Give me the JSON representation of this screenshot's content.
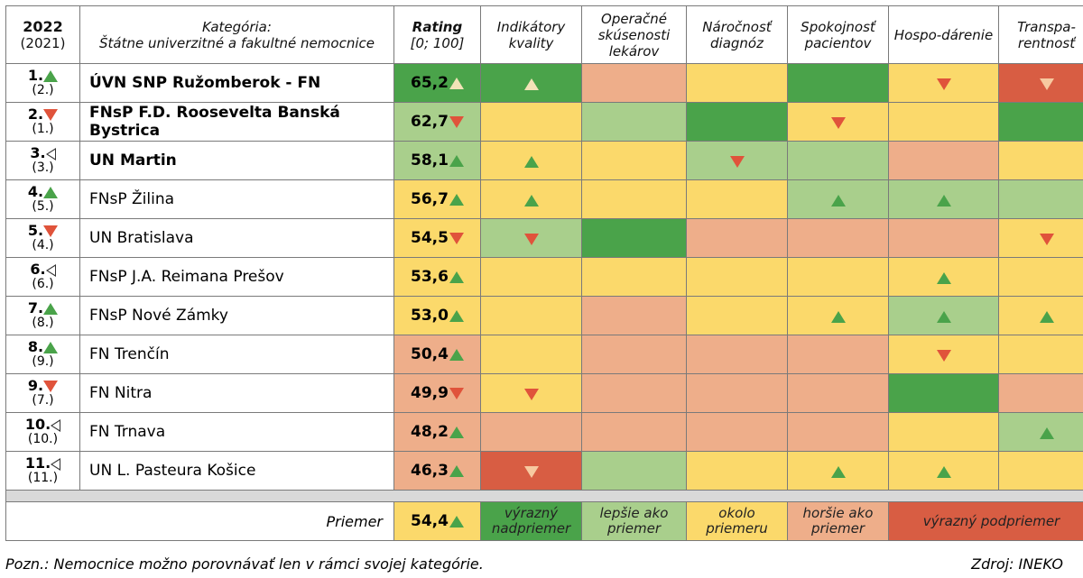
{
  "header": {
    "year_current": "2022",
    "year_previous": "(2021)",
    "category_title": "Kategória:",
    "category_sub": "Štátne univerzitné a fakultné nemocnice",
    "rating_title": "Rating",
    "rating_range": "[0; 100]",
    "columns": [
      "Indikátory kvality",
      "Operačné skúsenosti lekárov",
      "Náročnosť diagnóz",
      "Spokojnosť pacientov",
      "Hospo-dárenie",
      "Transpa-rentnosť"
    ]
  },
  "colors": {
    "dark_green": "#4aa34a",
    "light_green": "#a9cf8c",
    "yellow": "#fbd96b",
    "orange": "#eeae8a",
    "red": "#d85d43",
    "arrow_up": "#4aa34a",
    "arrow_down": "#e0533b"
  },
  "rows": [
    {
      "rank": "1.",
      "prev": "(2.)",
      "trend": "up",
      "name": "ÚVN SNP Ružomberok - FN",
      "bold": true,
      "score": "65,2",
      "score_trend": "up-light",
      "score_color": "dg",
      "cells": [
        {
          "c": "dg",
          "a": "up-light"
        },
        {
          "c": "o",
          "a": ""
        },
        {
          "c": "y",
          "a": ""
        },
        {
          "c": "dg",
          "a": ""
        },
        {
          "c": "y",
          "a": "down"
        },
        {
          "c": "r",
          "a": "down-light"
        }
      ]
    },
    {
      "rank": "2.",
      "prev": "(1.)",
      "trend": "down",
      "name": "FNsP F.D. Roosevelta Banská Bystrica",
      "bold": true,
      "score": "62,7",
      "score_trend": "down",
      "score_color": "lg",
      "cells": [
        {
          "c": "y",
          "a": ""
        },
        {
          "c": "lg",
          "a": ""
        },
        {
          "c": "dg",
          "a": ""
        },
        {
          "c": "y",
          "a": "down"
        },
        {
          "c": "y",
          "a": ""
        },
        {
          "c": "dg",
          "a": ""
        }
      ]
    },
    {
      "rank": "3.",
      "prev": "(3.)",
      "trend": "same",
      "name": "UN Martin",
      "bold": true,
      "score": "58,1",
      "score_trend": "up",
      "score_color": "lg",
      "cells": [
        {
          "c": "y",
          "a": "up"
        },
        {
          "c": "y",
          "a": ""
        },
        {
          "c": "lg",
          "a": "down"
        },
        {
          "c": "lg",
          "a": ""
        },
        {
          "c": "o",
          "a": ""
        },
        {
          "c": "y",
          "a": ""
        }
      ]
    },
    {
      "rank": "4.",
      "prev": "(5.)",
      "trend": "up",
      "name": "FNsP Žilina",
      "bold": false,
      "score": "56,7",
      "score_trend": "up",
      "score_color": "y",
      "cells": [
        {
          "c": "y",
          "a": "up"
        },
        {
          "c": "y",
          "a": ""
        },
        {
          "c": "y",
          "a": ""
        },
        {
          "c": "lg",
          "a": "up"
        },
        {
          "c": "lg",
          "a": "up"
        },
        {
          "c": "lg",
          "a": ""
        }
      ]
    },
    {
      "rank": "5.",
      "prev": "(4.)",
      "trend": "down",
      "name": "UN Bratislava",
      "bold": false,
      "score": "54,5",
      "score_trend": "down",
      "score_color": "y",
      "cells": [
        {
          "c": "lg",
          "a": "down"
        },
        {
          "c": "dg",
          "a": ""
        },
        {
          "c": "o",
          "a": ""
        },
        {
          "c": "o",
          "a": ""
        },
        {
          "c": "o",
          "a": ""
        },
        {
          "c": "y",
          "a": "down"
        }
      ]
    },
    {
      "rank": "6.",
      "prev": "(6.)",
      "trend": "same",
      "name": "FNsP J.A. Reimana Prešov",
      "bold": false,
      "score": "53,6",
      "score_trend": "up",
      "score_color": "y",
      "cells": [
        {
          "c": "y",
          "a": ""
        },
        {
          "c": "y",
          "a": ""
        },
        {
          "c": "y",
          "a": ""
        },
        {
          "c": "y",
          "a": ""
        },
        {
          "c": "y",
          "a": "up"
        },
        {
          "c": "y",
          "a": ""
        }
      ]
    },
    {
      "rank": "7.",
      "prev": "(8.)",
      "trend": "up",
      "name": "FNsP Nové Zámky",
      "bold": false,
      "score": "53,0",
      "score_trend": "up",
      "score_color": "y",
      "cells": [
        {
          "c": "y",
          "a": ""
        },
        {
          "c": "o",
          "a": ""
        },
        {
          "c": "y",
          "a": ""
        },
        {
          "c": "y",
          "a": "up"
        },
        {
          "c": "lg",
          "a": "up"
        },
        {
          "c": "y",
          "a": "up"
        }
      ]
    },
    {
      "rank": "8.",
      "prev": "(9.)",
      "trend": "up",
      "name": "FN Trenčín",
      "bold": false,
      "score": "50,4",
      "score_trend": "up",
      "score_color": "o",
      "cells": [
        {
          "c": "y",
          "a": ""
        },
        {
          "c": "o",
          "a": ""
        },
        {
          "c": "o",
          "a": ""
        },
        {
          "c": "o",
          "a": ""
        },
        {
          "c": "y",
          "a": "down"
        },
        {
          "c": "y",
          "a": ""
        }
      ]
    },
    {
      "rank": "9.",
      "prev": "(7.)",
      "trend": "down",
      "name": "FN Nitra",
      "bold": false,
      "score": "49,9",
      "score_trend": "down",
      "score_color": "o",
      "cells": [
        {
          "c": "y",
          "a": "down"
        },
        {
          "c": "o",
          "a": ""
        },
        {
          "c": "o",
          "a": ""
        },
        {
          "c": "o",
          "a": ""
        },
        {
          "c": "dg",
          "a": ""
        },
        {
          "c": "o",
          "a": ""
        }
      ]
    },
    {
      "rank": "10.",
      "prev": "(10.)",
      "trend": "same",
      "name": "FN Trnava",
      "bold": false,
      "score": "48,2",
      "score_trend": "up",
      "score_color": "o",
      "cells": [
        {
          "c": "o",
          "a": ""
        },
        {
          "c": "o",
          "a": ""
        },
        {
          "c": "o",
          "a": ""
        },
        {
          "c": "o",
          "a": ""
        },
        {
          "c": "y",
          "a": ""
        },
        {
          "c": "lg",
          "a": "up"
        }
      ]
    },
    {
      "rank": "11.",
      "prev": "(11.)",
      "trend": "same",
      "name": "UN L. Pasteura Košice",
      "bold": false,
      "score": "46,3",
      "score_trend": "up",
      "score_color": "o",
      "cells": [
        {
          "c": "r",
          "a": "down-light"
        },
        {
          "c": "lg",
          "a": ""
        },
        {
          "c": "y",
          "a": ""
        },
        {
          "c": "y",
          "a": "up"
        },
        {
          "c": "y",
          "a": "up"
        },
        {
          "c": "y",
          "a": ""
        }
      ]
    }
  ],
  "average": {
    "label": "Priemer",
    "score": "54,4",
    "score_trend": "up"
  },
  "legend": [
    {
      "label": "výrazný nadpriemer",
      "c": "dg"
    },
    {
      "label": "lepšie ako priemer",
      "c": "lg"
    },
    {
      "label": "okolo priemeru",
      "c": "y"
    },
    {
      "label": "horšie ako priemer",
      "c": "o"
    },
    {
      "label": "výrazný podpriemer",
      "c": "r"
    }
  ],
  "footer": {
    "note": "Pozn.: Nemocnice možno porovnávať len v rámci svojej kategórie.",
    "source": "Zdroj: INEKO"
  }
}
